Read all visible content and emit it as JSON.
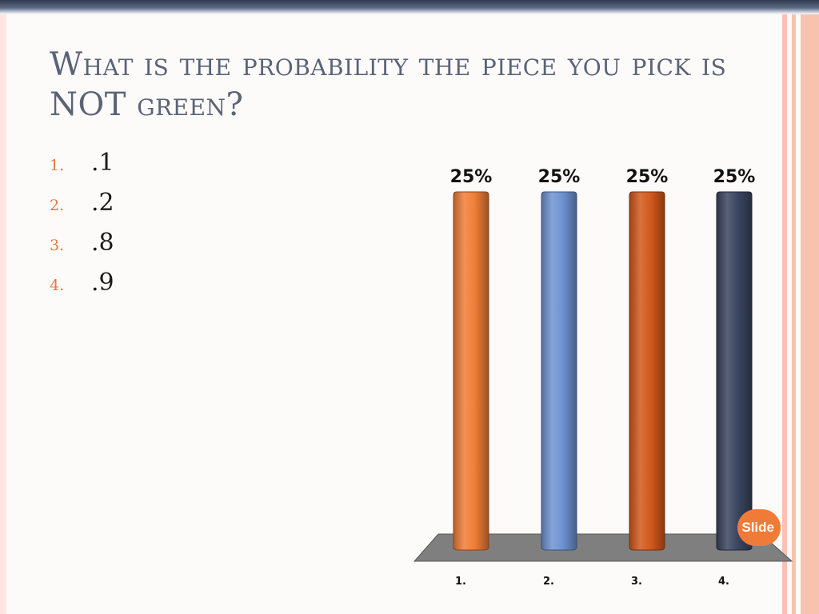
{
  "slide": {
    "title_parts": [
      "What is the probability the piece you pick is ",
      "NOT",
      " green?"
    ],
    "options": [
      {
        "number": "1.",
        "value": ".1"
      },
      {
        "number": "2.",
        "value": ".2"
      },
      {
        "number": "3.",
        "value": ".8"
      },
      {
        "number": "4.",
        "value": ".9"
      }
    ],
    "badge": "Slide"
  },
  "colors": {
    "accent": "#e07b3f",
    "title": "#5a6377",
    "stripe": "#f7c2ae",
    "floor": "#7f7f7f"
  },
  "chart_data": {
    "type": "bar",
    "categories": [
      "1.",
      "2.",
      "3.",
      "4."
    ],
    "values": [
      25,
      25,
      25,
      25
    ],
    "data_labels": [
      "25%",
      "25%",
      "25%",
      "25%"
    ],
    "colors": [
      "#f07e38",
      "#6f93d2",
      "#d2591c",
      "#3a4560"
    ],
    "ylim": [
      0,
      25
    ],
    "grid": false,
    "legend": "none"
  }
}
